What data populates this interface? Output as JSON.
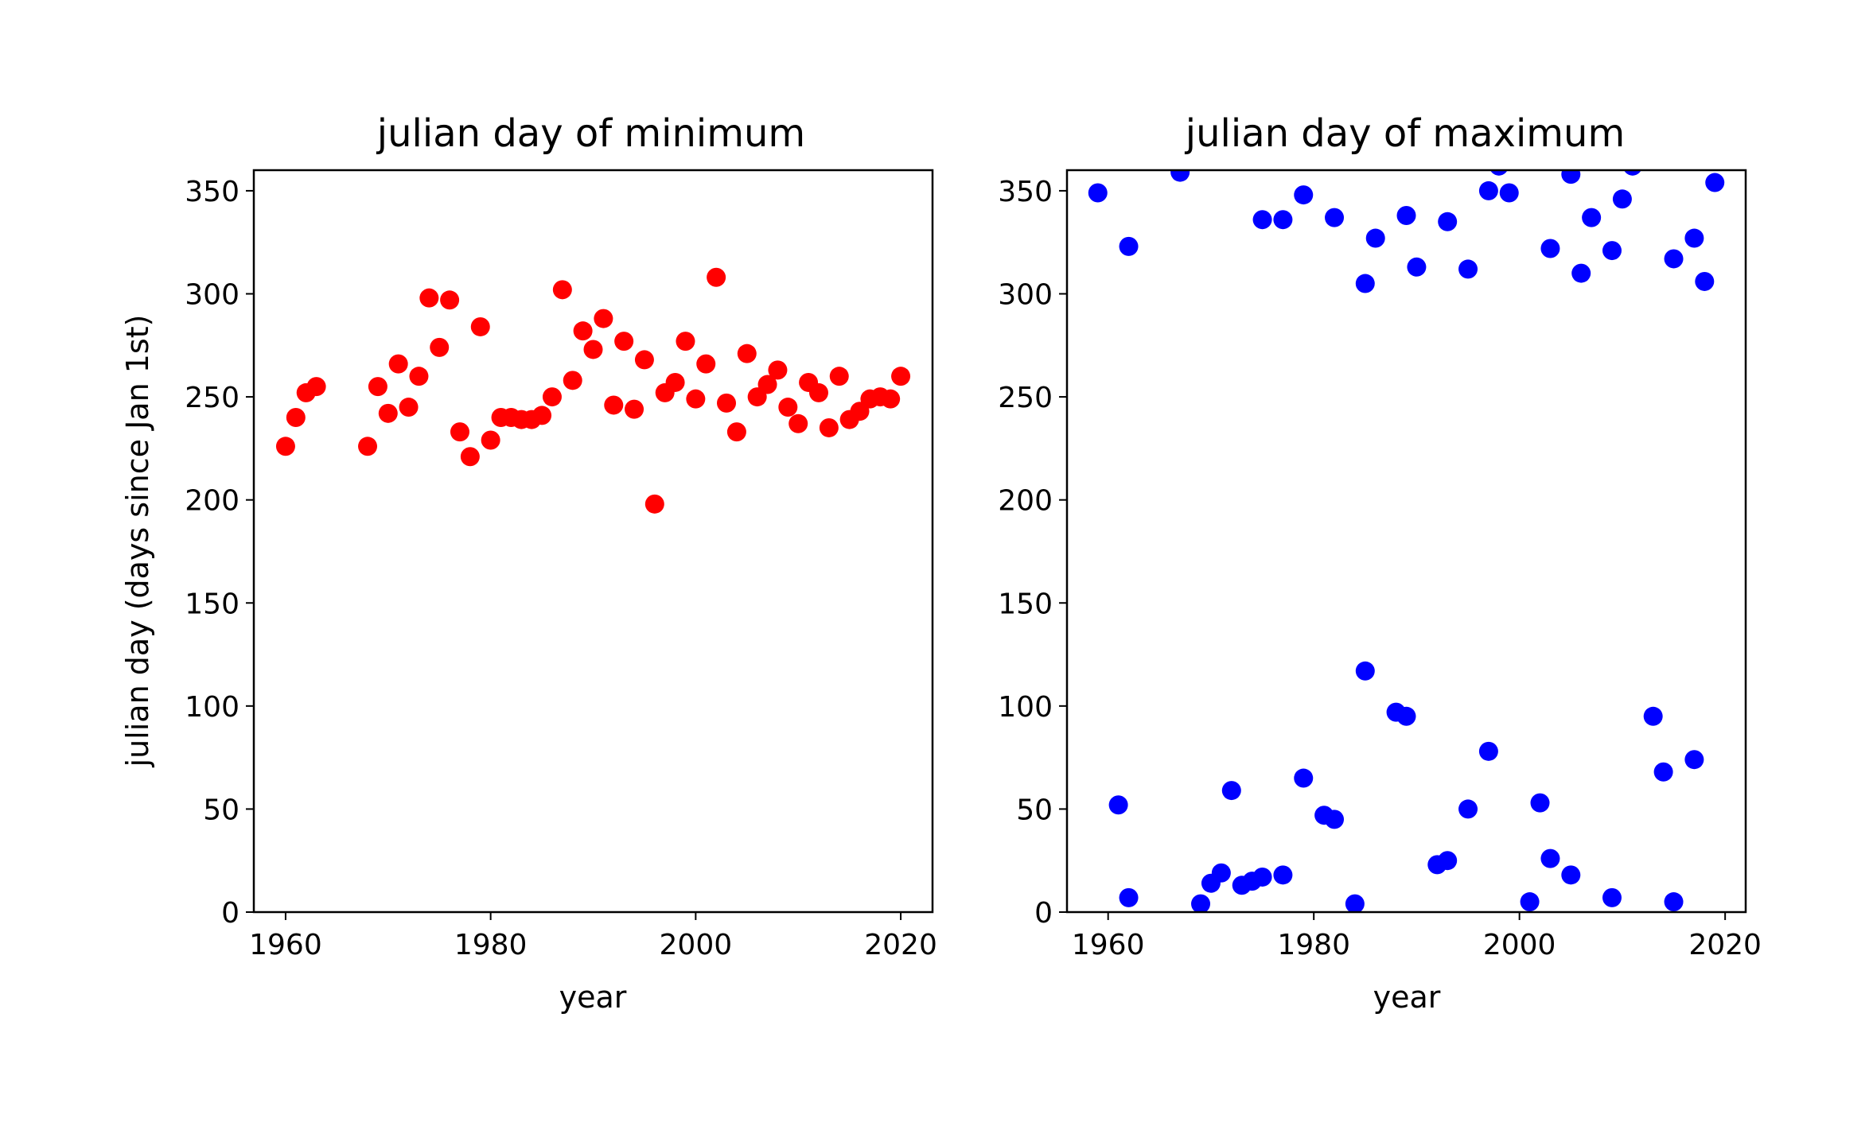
{
  "chart_data": [
    {
      "type": "scatter",
      "title": "julian day of minimum",
      "xlabel": "year",
      "ylabel": "julian day (days since Jan 1st)",
      "xlim": [
        1956.9,
        2023.1
      ],
      "ylim": [
        0,
        360
      ],
      "xticks": [
        "1960",
        "1980",
        "2000",
        "2020"
      ],
      "yticks": [
        "0",
        "50",
        "100",
        "150",
        "200",
        "250",
        "300",
        "350"
      ],
      "grid": false,
      "legend": "none",
      "color": "#ff0000",
      "series": [
        {
          "x": [
            1960,
            1961,
            1962,
            1963,
            1968,
            1969,
            1970,
            1971,
            1972,
            1973,
            1974,
            1975,
            1976,
            1977,
            1978,
            1979,
            1980,
            1981,
            1982,
            1983,
            1984,
            1985,
            1986,
            1987,
            1988,
            1989,
            1990,
            1991,
            1992,
            1993,
            1994,
            1995,
            1996,
            1997,
            1998,
            1999,
            2000,
            2001,
            2002,
            2003,
            2004,
            2005,
            2006,
            2007,
            2008,
            2009,
            2010,
            2011,
            2012,
            2013,
            2014,
            2015,
            2016,
            2017,
            2018,
            2019,
            2020
          ],
          "y": [
            226,
            240,
            252,
            255,
            226,
            255,
            242,
            266,
            245,
            260,
            298,
            274,
            297,
            233,
            221,
            284,
            229,
            240,
            240,
            239,
            239,
            241,
            250,
            302,
            258,
            282,
            273,
            288,
            246,
            277,
            244,
            268,
            198,
            252,
            257,
            277,
            249,
            266,
            308,
            247,
            233,
            271,
            250,
            256,
            263,
            245,
            237,
            257,
            252,
            235,
            260,
            239,
            243,
            249,
            250,
            249,
            260
          ]
        }
      ]
    },
    {
      "type": "scatter",
      "title": "julian day of maximum",
      "xlabel": "year",
      "ylabel": "",
      "xlim": [
        1956,
        2022
      ],
      "ylim": [
        0,
        360
      ],
      "xticks": [
        "1960",
        "1980",
        "2000",
        "2020"
      ],
      "yticks": [
        "0",
        "50",
        "100",
        "150",
        "200",
        "250",
        "300",
        "350"
      ],
      "grid": false,
      "legend": "none",
      "color": "#0000ff",
      "series": [
        {
          "x": [
            1959,
            1961,
            1962,
            1962,
            1967,
            1969,
            1970,
            1971,
            1972,
            1973,
            1974,
            1975,
            1975,
            1977,
            1977,
            1979,
            1979,
            1981,
            1982,
            1982,
            1984,
            1985,
            1985,
            1986,
            1988,
            1989,
            1989,
            1990,
            1992,
            1993,
            1993,
            1995,
            1995,
            1997,
            1997,
            1998,
            1999,
            2001,
            2002,
            2003,
            2003,
            2005,
            2005,
            2006,
            2007,
            2009,
            2009,
            2010,
            2011,
            2013,
            2014,
            2015,
            2015,
            2017,
            2017,
            2018,
            2019
          ],
          "y": [
            349,
            52,
            7,
            323,
            359,
            4,
            14,
            19,
            59,
            13,
            15,
            17,
            336,
            18,
            336,
            65,
            348,
            47,
            45,
            337,
            4,
            117,
            305,
            327,
            97,
            95,
            338,
            313,
            23,
            25,
            335,
            50,
            312,
            78,
            350,
            362,
            349,
            5,
            53,
            26,
            322,
            18,
            358,
            310,
            337,
            7,
            321,
            346,
            362,
            95,
            68,
            5,
            317,
            74,
            327,
            306,
            354
          ]
        }
      ]
    }
  ]
}
